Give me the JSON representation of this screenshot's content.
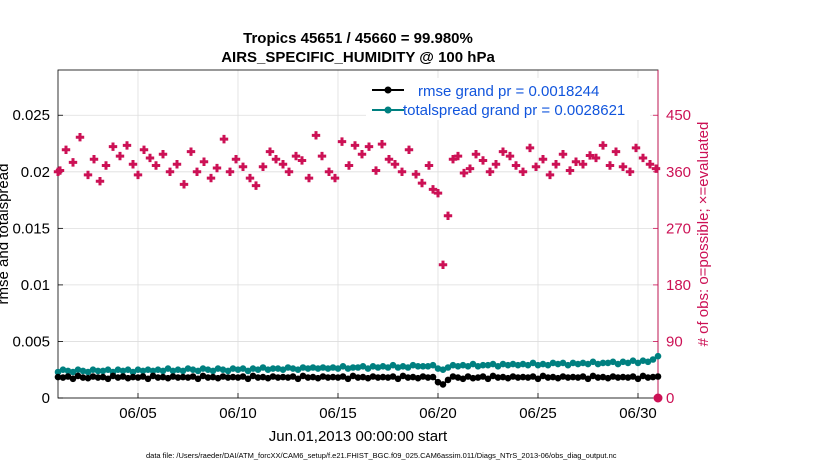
{
  "chart_data": {
    "type": "scatter",
    "title": "Tropics 45651 / 45660 = 99.980%",
    "subtitle": "AIRS_SPECIFIC_HUMIDITY @ 100 hPa",
    "xlabel": "Jun.01,2013 00:00:00 start",
    "ylabel": "rmse and totalspread",
    "ylabel_right": "# of obs: o=possible; ×=evaluated",
    "xlim": [
      1.0,
      31.0
    ],
    "ylim": [
      0,
      0.029
    ],
    "ylim_right": [
      0,
      522
    ],
    "x_ticks": [
      5,
      10,
      15,
      20,
      25,
      30
    ],
    "x_tick_labels": [
      "06/05",
      "06/10",
      "06/15",
      "06/20",
      "06/25",
      "06/30"
    ],
    "y_ticks": [
      0,
      0.005,
      0.01,
      0.015,
      0.02,
      0.025
    ],
    "y_tick_labels": [
      "0",
      "0.005",
      "0.01",
      "0.015",
      "0.02",
      "0.025"
    ],
    "y_right_ticks": [
      0,
      90,
      180,
      270,
      360,
      450
    ],
    "y_right_tick_labels": [
      "0",
      "90",
      "180",
      "270",
      "360",
      "450"
    ],
    "grid": true,
    "legend_position": "top-right",
    "footer": "data file: /Users/raeder/DAI/ATM_forcXX/CAM6_setup/f.e21.FHIST_BGC.f09_025.CAM6assim.011/Diags_NTrS_2013-06/obs_diag_output.nc",
    "colors": {
      "rmse": "#000000",
      "spread": "#008080",
      "obs": "#cc1155",
      "legend_text": "#1155dd"
    },
    "series": [
      {
        "name": "rmse grand pr = 0.0018244",
        "axis": "left",
        "marker": "circle",
        "x_start": 1.0,
        "x_step": 0.25,
        "values": [
          0.00185,
          0.0018,
          0.0019,
          0.0017,
          0.00195,
          0.0018,
          0.00175,
          0.0019,
          0.0018,
          0.00185,
          0.0017,
          0.00195,
          0.0018,
          0.0019,
          0.00175,
          0.00185,
          0.0018,
          0.0019,
          0.0017,
          0.00195,
          0.0018,
          0.00185,
          0.00175,
          0.0019,
          0.0018,
          0.00185,
          0.0018,
          0.0019,
          0.0017,
          0.00195,
          0.0018,
          0.00185,
          0.00175,
          0.0019,
          0.0018,
          0.00185,
          0.0018,
          0.0019,
          0.0017,
          0.00195,
          0.0018,
          0.00185,
          0.00175,
          0.0019,
          0.0018,
          0.00185,
          0.0018,
          0.0019,
          0.0017,
          0.00195,
          0.0018,
          0.00185,
          0.00175,
          0.0019,
          0.0018,
          0.00185,
          0.0018,
          0.0019,
          0.0017,
          0.00195,
          0.0018,
          0.00185,
          0.00175,
          0.0019,
          0.0018,
          0.00185,
          0.0018,
          0.0019,
          0.0017,
          0.00195,
          0.0018,
          0.00185,
          0.00175,
          0.0019,
          0.0018,
          0.00185,
          0.0014,
          0.0012,
          0.0016,
          0.0019,
          0.0018,
          0.0017,
          0.0019,
          0.00175,
          0.0018,
          0.0019,
          0.0017,
          0.00195,
          0.0018,
          0.00185,
          0.00175,
          0.0019,
          0.0018,
          0.00185,
          0.0018,
          0.0019,
          0.0017,
          0.00195,
          0.0018,
          0.00185,
          0.00175,
          0.0019,
          0.0018,
          0.00185,
          0.0018,
          0.0019,
          0.0017,
          0.00195,
          0.0018,
          0.00185,
          0.00175,
          0.0019,
          0.0018,
          0.00185,
          0.0018,
          0.0019,
          0.0017,
          0.00195,
          0.0018,
          0.00185,
          0.0019
        ]
      },
      {
        "name": "totalspread grand pr = 0.0028621",
        "axis": "left",
        "marker": "circle",
        "x_start": 1.0,
        "x_step": 0.25,
        "values": [
          0.0023,
          0.0025,
          0.0024,
          0.0023,
          0.0025,
          0.0024,
          0.0023,
          0.0025,
          0.0024,
          0.0024,
          0.0025,
          0.0023,
          0.0025,
          0.0024,
          0.0025,
          0.0023,
          0.0025,
          0.0024,
          0.0025,
          0.0024,
          0.0025,
          0.0024,
          0.0026,
          0.0024,
          0.0025,
          0.0024,
          0.0026,
          0.0025,
          0.0024,
          0.0026,
          0.0025,
          0.0024,
          0.0026,
          0.0025,
          0.0024,
          0.0026,
          0.0025,
          0.0026,
          0.0024,
          0.0026,
          0.0025,
          0.0027,
          0.0025,
          0.0026,
          0.0026,
          0.0025,
          0.0027,
          0.0026,
          0.0025,
          0.0027,
          0.0026,
          0.0027,
          0.0026,
          0.0027,
          0.0026,
          0.0027,
          0.0026,
          0.0028,
          0.0026,
          0.0027,
          0.0027,
          0.0028,
          0.0026,
          0.0028,
          0.0027,
          0.0028,
          0.0027,
          0.0029,
          0.0027,
          0.0028,
          0.0027,
          0.0029,
          0.0028,
          0.0028,
          0.0028,
          0.0029,
          0.0026,
          0.0025,
          0.0027,
          0.0029,
          0.0028,
          0.0029,
          0.0028,
          0.003,
          0.0028,
          0.0029,
          0.0029,
          0.003,
          0.0028,
          0.003,
          0.0029,
          0.003,
          0.0029,
          0.003,
          0.0029,
          0.0031,
          0.0029,
          0.003,
          0.0029,
          0.0031,
          0.003,
          0.0031,
          0.0029,
          0.0031,
          0.003,
          0.0031,
          0.003,
          0.0032,
          0.003,
          0.0031,
          0.0031,
          0.0032,
          0.003,
          0.0032,
          0.0031,
          0.0033,
          0.0031,
          0.0033,
          0.0032,
          0.0034,
          0.0037
        ]
      },
      {
        "name": "# obs possible",
        "axis": "right",
        "marker": "circle-open",
        "x": [
          31.0
        ],
        "values": [
          0
        ]
      },
      {
        "name": "# obs evaluated",
        "axis": "right",
        "marker": "cross",
        "x": [
          1.0,
          1.1,
          1.4,
          1.75,
          2.1,
          2.5,
          2.8,
          3.1,
          3.4,
          3.75,
          4.1,
          4.45,
          4.75,
          5.0,
          5.3,
          5.6,
          5.9,
          6.25,
          6.6,
          6.95,
          7.3,
          7.65,
          7.95,
          8.3,
          8.65,
          8.95,
          9.3,
          9.6,
          9.9,
          10.25,
          10.6,
          10.9,
          11.25,
          11.6,
          11.9,
          12.25,
          12.55,
          12.9,
          13.2,
          13.55,
          13.9,
          14.2,
          14.55,
          14.85,
          15.2,
          15.55,
          15.85,
          16.2,
          16.55,
          16.9,
          17.2,
          17.55,
          17.85,
          18.2,
          18.55,
          18.9,
          19.2,
          19.55,
          19.75,
          20.0,
          20.25,
          20.5,
          20.75,
          21.0,
          21.3,
          21.6,
          21.9,
          22.25,
          22.6,
          22.9,
          23.25,
          23.6,
          23.9,
          24.25,
          24.6,
          24.9,
          25.25,
          25.6,
          25.9,
          26.25,
          26.6,
          26.9,
          27.25,
          27.6,
          27.9,
          28.25,
          28.6,
          28.9,
          29.25,
          29.6,
          29.9,
          30.25,
          30.6,
          30.9
        ],
        "values": [
          360,
          362,
          395,
          375,
          415,
          355,
          380,
          345,
          370,
          400,
          385,
          402,
          372,
          355,
          395,
          382,
          370,
          388,
          360,
          372,
          340,
          392,
          360,
          376,
          350,
          366,
          412,
          360,
          380,
          368,
          350,
          338,
          368,
          392,
          380,
          372,
          360,
          385,
          378,
          350,
          418,
          385,
          360,
          350,
          408,
          370,
          402,
          388,
          400,
          362,
          404,
          380,
          372,
          360,
          395,
          356,
          342,
          370,
          332,
          326,
          212,
          290,
          380,
          385,
          358,
          365,
          388,
          378,
          360,
          372,
          392,
          385,
          370,
          360,
          398,
          368,
          380,
          355,
          372,
          388,
          362,
          376,
          372,
          386,
          382,
          402,
          370,
          392,
          368,
          360,
          398,
          382,
          372,
          365
        ]
      }
    ]
  }
}
